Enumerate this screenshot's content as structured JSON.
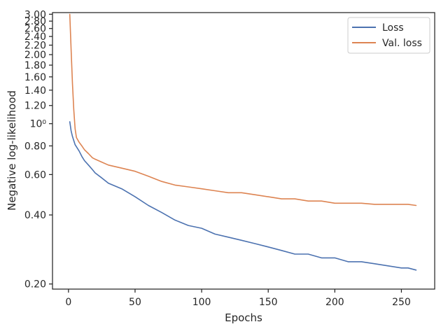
{
  "chart_data": {
    "type": "line",
    "title": "",
    "xlabel": "Epochs",
    "ylabel": "Negative log-likelihood",
    "y_scale": "log",
    "xlim": [
      -12,
      275
    ],
    "ylim": [
      0.19,
      3.05
    ],
    "x_ticks": [
      0,
      50,
      100,
      150,
      200,
      250
    ],
    "x_tick_labels": [
      "0",
      "50",
      "100",
      "150",
      "200",
      "250"
    ],
    "y_ticks": [
      0.2,
      0.4,
      0.6,
      0.8,
      1.0,
      1.2,
      1.4,
      1.6,
      1.8,
      2.0,
      2.2,
      2.4,
      2.6,
      2.8,
      3.0
    ],
    "y_tick_labels": [
      "0.20",
      "0.40",
      "0.60",
      "0.80",
      "10⁰",
      "1.20",
      "1.40",
      "1.60",
      "1.80",
      "2.00",
      "2.20",
      "2.40",
      "2.60",
      "2.80",
      "3.00"
    ],
    "grid": false,
    "legend_position": "top-right",
    "series": [
      {
        "name": "Loss",
        "color": "#4c72b0",
        "x": [
          1,
          2,
          3,
          5,
          8,
          10,
          12,
          15,
          18,
          20,
          25,
          30,
          40,
          50,
          60,
          70,
          80,
          90,
          100,
          110,
          120,
          130,
          140,
          150,
          160,
          170,
          180,
          190,
          200,
          210,
          220,
          230,
          240,
          250,
          255,
          261
        ],
        "y": [
          1.02,
          0.93,
          0.88,
          0.81,
          0.76,
          0.72,
          0.69,
          0.66,
          0.63,
          0.61,
          0.58,
          0.55,
          0.52,
          0.48,
          0.44,
          0.41,
          0.38,
          0.36,
          0.35,
          0.33,
          0.32,
          0.31,
          0.3,
          0.29,
          0.28,
          0.27,
          0.27,
          0.26,
          0.26,
          0.25,
          0.25,
          0.245,
          0.24,
          0.235,
          0.235,
          0.23
        ]
      },
      {
        "name": "Val. loss",
        "color": "#dd8452",
        "x": [
          1,
          2,
          3,
          4,
          5,
          6,
          8,
          10,
          12,
          15,
          18,
          20,
          25,
          30,
          40,
          50,
          60,
          70,
          80,
          90,
          100,
          110,
          120,
          130,
          140,
          150,
          160,
          170,
          180,
          190,
          200,
          210,
          220,
          230,
          240,
          250,
          255,
          261
        ],
        "y": [
          3.0,
          2.1,
          1.5,
          1.15,
          0.95,
          0.87,
          0.83,
          0.8,
          0.77,
          0.74,
          0.71,
          0.7,
          0.68,
          0.66,
          0.64,
          0.62,
          0.59,
          0.56,
          0.54,
          0.53,
          0.52,
          0.51,
          0.5,
          0.5,
          0.49,
          0.48,
          0.47,
          0.47,
          0.46,
          0.46,
          0.45,
          0.45,
          0.45,
          0.445,
          0.445,
          0.445,
          0.445,
          0.44
        ]
      }
    ]
  }
}
